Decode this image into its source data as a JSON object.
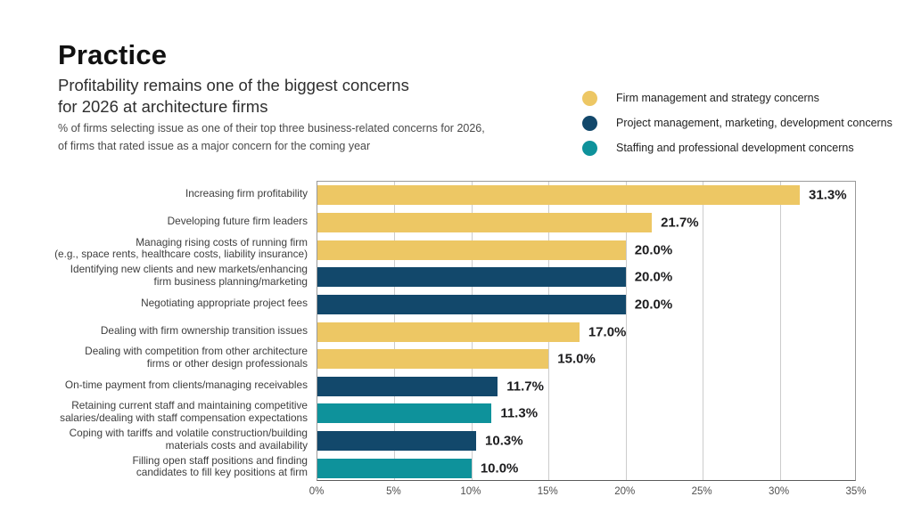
{
  "chart_data": {
    "type": "bar",
    "orientation": "horizontal",
    "title": "Practice",
    "subtitle_lines": [
      "Profitability remains one of the biggest concerns",
      "for 2026 at architecture firms"
    ],
    "note_lines": [
      "% of firms selecting issue as one of their top three business-related concerns for 2026,",
      "of firms that rated issue as a major concern for the coming year"
    ],
    "xlabel": "",
    "ylabel": "",
    "xlim": [
      0,
      35
    ],
    "x_ticks": [
      "0%",
      "5%",
      "10%",
      "15%",
      "20%",
      "25%",
      "30%",
      "35%"
    ],
    "x_tick_values": [
      0,
      5,
      10,
      15,
      20,
      25,
      30,
      35
    ],
    "grid": true,
    "colors": {
      "firm-management": "#EDC764",
      "project-management": "#12486B",
      "staffing": "#0E929B"
    },
    "legend": {
      "position": "top-right",
      "items": [
        {
          "label": "Firm management and strategy concerns",
          "category": "firm-management"
        },
        {
          "label": "Project management, marketing, development concerns",
          "category": "project-management"
        },
        {
          "label": "Staffing and professional development concerns",
          "category": "staffing"
        }
      ]
    },
    "bars": [
      {
        "label": "Increasing firm profitability",
        "label_lines": [
          "Increasing firm profitability"
        ],
        "value": 31.3,
        "display": "31.3%",
        "category": "firm-management"
      },
      {
        "label": "Developing future firm leaders",
        "label_lines": [
          "Developing future firm leaders"
        ],
        "value": 21.7,
        "display": "21.7%",
        "category": "firm-management"
      },
      {
        "label": "Managing rising costs of running firm (e.g., space rents, healthcare costs, liability insurance)",
        "label_lines": [
          "Managing rising costs of running firm",
          "(e.g., space rents, healthcare costs, liability insurance)"
        ],
        "value": 20.0,
        "display": "20.0%",
        "category": "firm-management"
      },
      {
        "label": "Identifying new clients and new markets/enhancing firm business planning/marketing",
        "label_lines": [
          "Identifying new clients and new markets/enhancing",
          "firm business planning/marketing"
        ],
        "value": 20.0,
        "display": "20.0%",
        "category": "project-management"
      },
      {
        "label": "Negotiating appropriate project fees",
        "label_lines": [
          "Negotiating appropriate project fees"
        ],
        "value": 20.0,
        "display": "20.0%",
        "category": "project-management"
      },
      {
        "label": "Dealing with firm ownership transition issues",
        "label_lines": [
          "Dealing with firm ownership transition issues"
        ],
        "value": 17.0,
        "display": "17.0%",
        "category": "firm-management"
      },
      {
        "label": "Dealing with competition from other architecture firms or other design professionals",
        "label_lines": [
          "Dealing with competition from other architecture",
          "firms or other design professionals"
        ],
        "value": 15.0,
        "display": "15.0%",
        "category": "firm-management"
      },
      {
        "label": "On-time payment from clients/managing receivables",
        "label_lines": [
          "On-time payment from clients/managing receivables"
        ],
        "value": 11.7,
        "display": "11.7%",
        "category": "project-management"
      },
      {
        "label": "Retaining current staff and maintaining competitive salaries/dealing with staff compensation expectations",
        "label_lines": [
          "Retaining current staff and maintaining competitive",
          "salaries/dealing with staff compensation expectations"
        ],
        "value": 11.3,
        "display": "11.3%",
        "category": "staffing"
      },
      {
        "label": "Coping with tariffs and volatile construction/building materials costs and availability",
        "label_lines": [
          "Coping with tariffs and volatile construction/building",
          "materials costs and availability"
        ],
        "value": 10.3,
        "display": "10.3%",
        "category": "project-management"
      },
      {
        "label": "Filling open staff positions and finding candidates to fill key positions at firm",
        "label_lines": [
          "Filling open staff positions and finding",
          "candidates to fill key positions at firm"
        ],
        "value": 10.0,
        "display": "10.0%",
        "category": "staffing"
      }
    ]
  }
}
